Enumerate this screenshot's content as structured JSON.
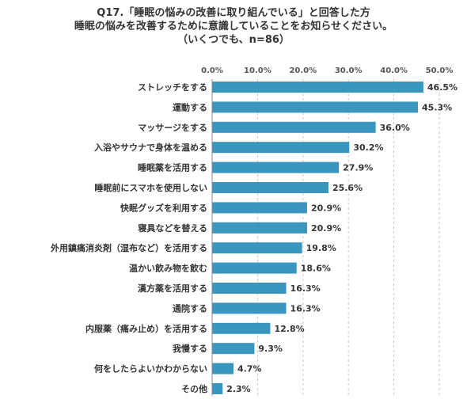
{
  "title_lines": [
    "Q17.「睡眠の悩みの改善に取り組んでいる」と回答した方",
    "睡眠の悩みを改善するために意識していることをお知らせください。",
    "（いくつでも、n=86）"
  ],
  "chart_data": {
    "type": "bar",
    "orientation": "horizontal",
    "title": "Q17.「睡眠の悩みの改善に取り組んでいる」と回答した方 睡眠の悩みを改善するために意識していることをお知らせください。（いくつでも、n=86）",
    "categories": [
      "ストレッチをする",
      "運動する",
      "マッサージをする",
      "入浴やサウナで身体を温める",
      "睡眠薬を活用する",
      "睡眠前にスマホを使用しない",
      "快眠グッズを利用する",
      "寝具などを替える",
      "外用鎮痛消炎剤（湿布など）を活用する",
      "温かい飲み物を飲む",
      "漢方薬を活用する",
      "通院する",
      "内服薬（痛み止め）を活用する",
      "我慢する",
      "何をしたらよいかわからない",
      "その他"
    ],
    "values": [
      46.5,
      45.3,
      36.0,
      30.2,
      27.9,
      25.6,
      20.9,
      20.9,
      19.8,
      18.6,
      16.3,
      16.3,
      12.8,
      9.3,
      4.7,
      2.3
    ],
    "value_labels": [
      "46.5%",
      "45.3%",
      "36.0%",
      "30.2%",
      "27.9%",
      "25.6%",
      "20.9%",
      "20.9%",
      "19.8%",
      "18.6%",
      "16.3%",
      "16.3%",
      "12.8%",
      "9.3%",
      "4.7%",
      "2.3%"
    ],
    "xticks": [
      0,
      10,
      20,
      30,
      40,
      50
    ],
    "xtick_labels": [
      "0.0%",
      "10.0%",
      "20.0%",
      "30.0%",
      "40.0%",
      "50.0%"
    ],
    "xlim": [
      0,
      50
    ],
    "xaxis_position": "top",
    "grid": "vertical dashed",
    "bar_color": "#3a96bf",
    "grid_color": "#c8c8c8",
    "axis_color": "#888888"
  }
}
